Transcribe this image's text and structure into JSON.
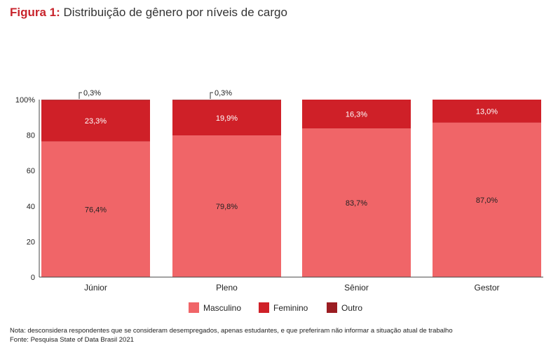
{
  "title": {
    "figure_label": "Figura 1:",
    "text": "Distribuição de gênero por níveis de cargo"
  },
  "colors": {
    "masculino": "#f06568",
    "feminino": "#cf2028",
    "outro": "#9b1d22",
    "accent": "#c8242c"
  },
  "chart_data": {
    "type": "bar",
    "stacked": true,
    "categories": [
      "Júnior",
      "Pleno",
      "Sênior",
      "Gestor"
    ],
    "series": [
      {
        "name": "Masculino",
        "values": [
          76.4,
          79.8,
          83.7,
          87.0
        ],
        "labels": [
          "76,4%",
          "79,8%",
          "83,7%",
          "87,0%"
        ]
      },
      {
        "name": "Feminino",
        "values": [
          23.3,
          19.9,
          16.3,
          13.0
        ],
        "labels": [
          "23,3%",
          "19,9%",
          "16,3%",
          "13,0%"
        ]
      },
      {
        "name": "Outro",
        "values": [
          0.3,
          0.3,
          0,
          0
        ],
        "labels": [
          "0,3%",
          "0,3%",
          "",
          ""
        ]
      }
    ],
    "ylim": [
      0,
      100
    ],
    "yticks": [
      0,
      20,
      40,
      60,
      80,
      100
    ],
    "ytick_labels": [
      "0",
      "20",
      "40",
      "60",
      "80",
      "100%"
    ],
    "grid": false,
    "legend_position": "bottom-center"
  },
  "notes": {
    "nota": "Nota: desconsidera respondentes que se consideram desempregados, apenas estudantes, e que preferiram não informar a situação atual de trabalho",
    "fonte": "Fonte: Pesquisa State of Data Brasil 2021"
  }
}
